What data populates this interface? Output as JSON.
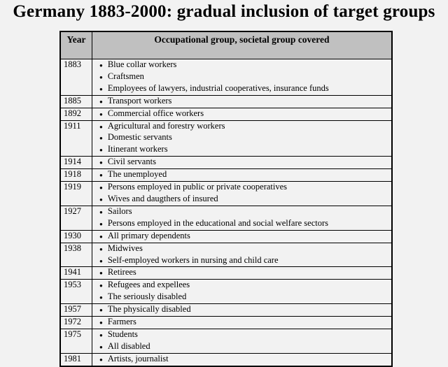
{
  "page": {
    "title": "Germany 1883-2000: gradual inclusion of target groups",
    "background_color": "#f2f2f2"
  },
  "table": {
    "header": {
      "year": "Year",
      "group": "Occupational group, societal group covered"
    },
    "header_bg_color": "#c0c0c0",
    "border_color": "#000000",
    "rows": [
      {
        "year": "1883",
        "items": [
          "Blue collar workers",
          "Craftsmen",
          "Employees of lawyers, industrial cooperatives, insurance funds"
        ]
      },
      {
        "year": "1885",
        "items": [
          "Transport workers"
        ]
      },
      {
        "year": "1892",
        "items": [
          "Commercial office workers"
        ]
      },
      {
        "year": "1911",
        "items": [
          "Agricultural and forestry workers",
          "Domestic servants",
          "Itinerant workers"
        ]
      },
      {
        "year": "1914",
        "items": [
          "Civil servants"
        ]
      },
      {
        "year": "1918",
        "items": [
          "The unemployed"
        ]
      },
      {
        "year": "1919",
        "items": [
          "Persons employed in public or private cooperatives",
          "Wives and daugthers of insured"
        ]
      },
      {
        "year": "1927",
        "items": [
          "Sailors",
          "Persons employed in the educational and social welfare sectors"
        ]
      },
      {
        "year": "1930",
        "items": [
          "All primary dependents"
        ]
      },
      {
        "year": "1938",
        "items": [
          "Midwives",
          "Self-employed workers in nursing and child care"
        ]
      },
      {
        "year": "1941",
        "items": [
          "Retirees"
        ]
      },
      {
        "year": "1953",
        "items": [
          "Refugees and expellees",
          "The seriously disabled"
        ]
      },
      {
        "year": "1957",
        "items": [
          "The physically disabled"
        ]
      },
      {
        "year": "1972",
        "items": [
          "Farmers"
        ]
      },
      {
        "year": "1975",
        "items": [
          "Students",
          "All disabled"
        ]
      },
      {
        "year": "1981",
        "items": [
          "Artists, journalist"
        ]
      }
    ]
  }
}
